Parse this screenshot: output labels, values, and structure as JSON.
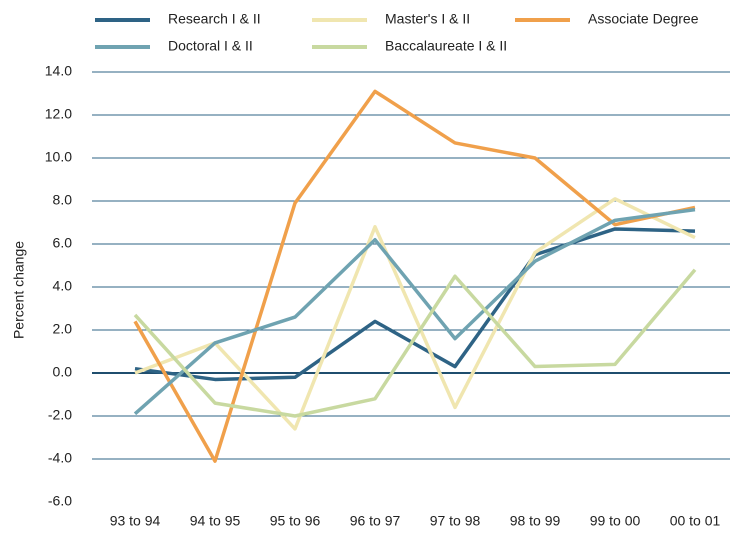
{
  "chart_data": {
    "type": "line",
    "y_label": "Percent change",
    "categories": [
      "93 to 94",
      "94 to 95",
      "95 to 96",
      "96 to 97",
      "97 to 98",
      "98 to 99",
      "99 to 00",
      "00 to 01"
    ],
    "series": [
      {
        "name": "Research I & II",
        "color": "#2e6385",
        "values": [
          0.2,
          -0.3,
          -0.2,
          2.4,
          0.3,
          5.5,
          6.7,
          6.6
        ]
      },
      {
        "name": "Master's I & II",
        "color": "#f0e6b0",
        "values": [
          0.0,
          1.4,
          -2.6,
          6.8,
          -1.6,
          5.6,
          8.1,
          6.3
        ]
      },
      {
        "name": "Associate Degree",
        "color": "#f0a04b",
        "values": [
          2.4,
          -4.1,
          7.9,
          13.1,
          10.7,
          10.0,
          6.9,
          7.7
        ]
      },
      {
        "name": "Doctoral I & II",
        "color": "#6fa3b1",
        "values": [
          -1.9,
          1.4,
          2.6,
          6.2,
          1.6,
          5.2,
          7.1,
          7.6
        ]
      },
      {
        "name": "Baccalaureate I & II",
        "color": "#c8d9a0",
        "values": [
          2.7,
          -1.4,
          -2.0,
          -1.2,
          4.5,
          0.3,
          0.4,
          4.8
        ]
      }
    ],
    "ylim": [
      -6,
      14
    ],
    "yticks": [
      {
        "value": -6,
        "label": "-6.0"
      },
      {
        "value": -4,
        "label": "-4.0"
      },
      {
        "value": -2,
        "label": "-2.0"
      },
      {
        "value": 0,
        "label": "0.0"
      },
      {
        "value": 2,
        "label": "2.0"
      },
      {
        "value": 4,
        "label": "4.0"
      },
      {
        "value": 6,
        "label": "6.0"
      },
      {
        "value": 8,
        "label": "8.0"
      },
      {
        "value": 10,
        "label": "10.0"
      },
      {
        "value": 12,
        "label": "12.0"
      },
      {
        "value": 14,
        "label": "14.0"
      }
    ],
    "grid": true
  }
}
